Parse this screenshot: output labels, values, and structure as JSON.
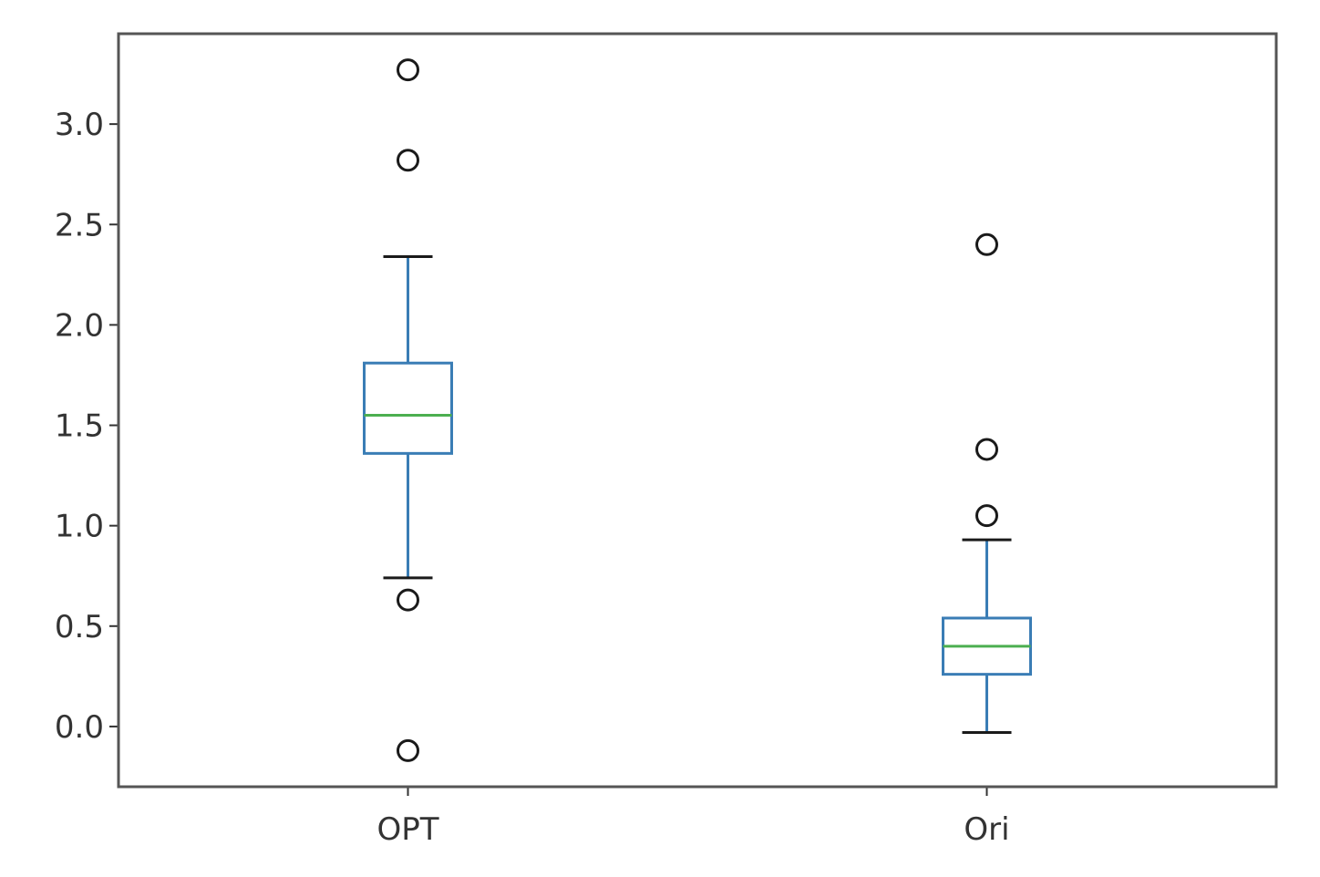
{
  "chart_data": {
    "type": "box",
    "title": "",
    "xlabel": "",
    "ylabel": "",
    "categories": [
      "OPT",
      "Ori"
    ],
    "ylim": [
      -0.3,
      3.45
    ],
    "yticks": [
      0.0,
      0.5,
      1.0,
      1.5,
      2.0,
      2.5,
      3.0
    ],
    "ytick_labels": [
      "0.0",
      "0.5",
      "1.0",
      "1.5",
      "2.0",
      "2.5",
      "3.0"
    ],
    "grid": false,
    "colors": {
      "box": "#3a7db5",
      "whisker": "#3a7db5",
      "cap": "#1a1a1a",
      "median": "#4caf50",
      "flier": "#1a1a1a",
      "frame": "#555555"
    },
    "boxes": [
      {
        "name": "OPT",
        "whisker_low": 0.74,
        "q1": 1.36,
        "median": 1.55,
        "q3": 1.81,
        "whisker_high": 2.34,
        "fliers": [
          3.27,
          2.82,
          0.63,
          -0.12
        ]
      },
      {
        "name": "Ori",
        "whisker_low": -0.03,
        "q1": 0.26,
        "median": 0.4,
        "q3": 0.54,
        "whisker_high": 0.93,
        "fliers": [
          2.4,
          1.38,
          1.05
        ]
      }
    ]
  }
}
